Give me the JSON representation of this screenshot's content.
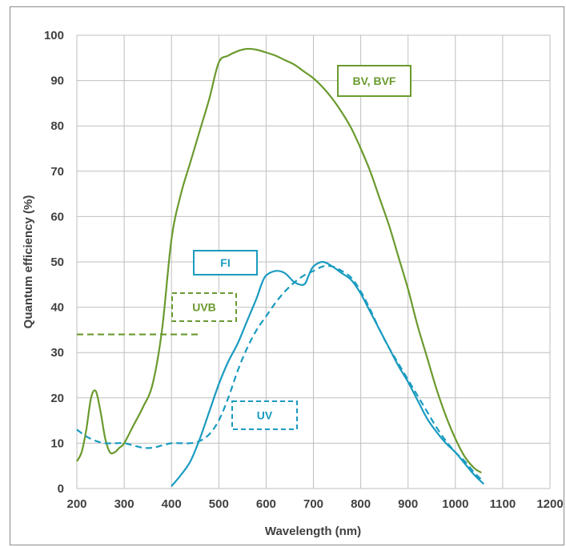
{
  "chart_data": {
    "type": "line",
    "title": "",
    "xlabel": "Wavelength (nm)",
    "ylabel": "Quantum efficiency (%)",
    "xlim": [
      200,
      1200
    ],
    "ylim": [
      0,
      100
    ],
    "xticks": [
      "200",
      "300",
      "400",
      "500",
      "600",
      "700",
      "800",
      "900",
      "1000",
      "1100",
      "1200"
    ],
    "yticks": [
      "0",
      "10",
      "20",
      "30",
      "40",
      "50",
      "60",
      "70",
      "80",
      "90",
      "100"
    ],
    "grid": true,
    "series": [
      {
        "name": "BV, BVF",
        "color": "#6a9a2e",
        "dash": "solid",
        "points": [
          [
            200,
            6
          ],
          [
            210,
            8
          ],
          [
            220,
            13
          ],
          [
            230,
            20
          ],
          [
            240,
            21.5
          ],
          [
            250,
            17
          ],
          [
            260,
            11
          ],
          [
            270,
            8
          ],
          [
            280,
            8
          ],
          [
            290,
            9
          ],
          [
            300,
            10
          ],
          [
            320,
            14
          ],
          [
            340,
            18
          ],
          [
            360,
            23
          ],
          [
            380,
            35
          ],
          [
            400,
            55
          ],
          [
            420,
            65
          ],
          [
            440,
            72
          ],
          [
            460,
            79
          ],
          [
            480,
            86
          ],
          [
            500,
            94
          ],
          [
            520,
            95.5
          ],
          [
            540,
            96.5
          ],
          [
            560,
            97
          ],
          [
            580,
            96.8
          ],
          [
            600,
            96.2
          ],
          [
            620,
            95.5
          ],
          [
            640,
            94.5
          ],
          [
            660,
            93.5
          ],
          [
            680,
            92
          ],
          [
            700,
            90.5
          ],
          [
            720,
            88.5
          ],
          [
            740,
            86
          ],
          [
            760,
            83
          ],
          [
            780,
            79.5
          ],
          [
            800,
            75
          ],
          [
            820,
            70
          ],
          [
            840,
            64
          ],
          [
            860,
            58
          ],
          [
            880,
            51
          ],
          [
            900,
            44
          ],
          [
            920,
            36
          ],
          [
            940,
            29
          ],
          [
            960,
            22
          ],
          [
            980,
            16
          ],
          [
            1000,
            11
          ],
          [
            1020,
            7
          ],
          [
            1040,
            4.5
          ],
          [
            1055,
            3.5
          ]
        ]
      },
      {
        "name": "UVB",
        "color": "#6a9a2e",
        "dash": "dashed",
        "points": [
          [
            200,
            34
          ],
          [
            460,
            34
          ]
        ]
      },
      {
        "name": "FI",
        "color": "#1a9bc0",
        "dash": "solid",
        "points": [
          [
            400,
            0.5
          ],
          [
            420,
            3
          ],
          [
            440,
            6
          ],
          [
            460,
            11
          ],
          [
            480,
            17
          ],
          [
            500,
            23
          ],
          [
            520,
            28
          ],
          [
            540,
            32
          ],
          [
            560,
            37
          ],
          [
            580,
            42
          ],
          [
            590,
            45
          ],
          [
            600,
            47
          ],
          [
            620,
            48
          ],
          [
            640,
            47.5
          ],
          [
            660,
            45.5
          ],
          [
            680,
            45
          ],
          [
            690,
            47
          ],
          [
            700,
            49
          ],
          [
            720,
            50
          ],
          [
            740,
            49
          ],
          [
            760,
            47.5
          ],
          [
            780,
            46
          ],
          [
            800,
            43
          ],
          [
            820,
            39
          ],
          [
            840,
            35
          ],
          [
            860,
            31
          ],
          [
            880,
            27
          ],
          [
            900,
            23.5
          ],
          [
            920,
            19.5
          ],
          [
            940,
            15.5
          ],
          [
            960,
            12.5
          ],
          [
            980,
            10
          ],
          [
            1000,
            8
          ],
          [
            1020,
            5.5
          ],
          [
            1040,
            3
          ],
          [
            1060,
            1
          ]
        ]
      },
      {
        "name": "UV",
        "color": "#1a9bc0",
        "dash": "dashed",
        "points": [
          [
            200,
            13
          ],
          [
            220,
            11.5
          ],
          [
            240,
            10.5
          ],
          [
            260,
            10
          ],
          [
            280,
            10
          ],
          [
            300,
            10
          ],
          [
            320,
            9.5
          ],
          [
            340,
            9
          ],
          [
            360,
            9
          ],
          [
            380,
            9.5
          ],
          [
            400,
            10
          ],
          [
            420,
            10
          ],
          [
            440,
            10
          ],
          [
            460,
            10.5
          ],
          [
            480,
            12
          ],
          [
            500,
            15
          ],
          [
            520,
            20
          ],
          [
            540,
            26
          ],
          [
            560,
            31
          ],
          [
            580,
            35
          ],
          [
            600,
            38
          ],
          [
            620,
            41
          ],
          [
            640,
            43.5
          ],
          [
            660,
            45.5
          ],
          [
            680,
            47
          ],
          [
            700,
            48
          ],
          [
            720,
            49
          ],
          [
            740,
            49
          ],
          [
            760,
            48
          ],
          [
            780,
            46.5
          ],
          [
            800,
            43.5
          ],
          [
            820,
            39.5
          ],
          [
            840,
            35
          ],
          [
            860,
            31
          ],
          [
            880,
            27.5
          ],
          [
            900,
            24
          ],
          [
            920,
            20.5
          ],
          [
            940,
            17
          ],
          [
            960,
            13.5
          ],
          [
            980,
            10.5
          ],
          [
            1000,
            8
          ],
          [
            1020,
            6
          ],
          [
            1040,
            3.5
          ],
          [
            1055,
            2
          ]
        ]
      }
    ],
    "annotations": [
      {
        "text": "BV, BVF",
        "color": "#6a9a2e",
        "border": "solid",
        "anchor": "right-of-green-curve-top"
      },
      {
        "text": "FI",
        "color": "#1a9bc0",
        "border": "solid",
        "anchor": "above-blue-curve"
      },
      {
        "text": "UVB",
        "color": "#6a9a2e",
        "border": "dashed",
        "anchor": "above-uvb-dashed-line"
      },
      {
        "text": "UV",
        "color": "#1a9bc0",
        "border": "dashed",
        "anchor": "right-of-uv-curve"
      }
    ]
  }
}
